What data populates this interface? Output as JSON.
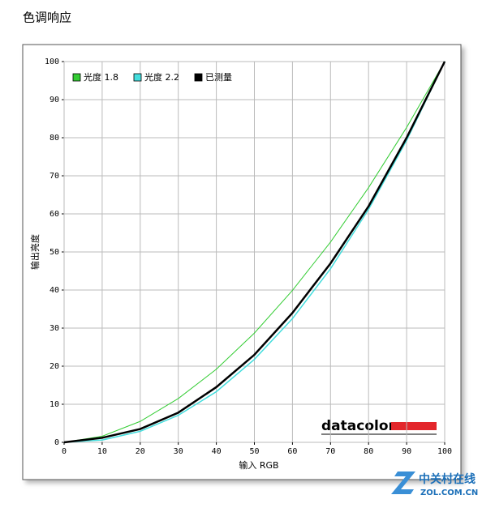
{
  "chart_data": {
    "type": "line",
    "title": "色调响应",
    "x_label": "输入 RGB",
    "y_label": "输出亮度",
    "x": [
      0,
      10,
      20,
      30,
      40,
      50,
      60,
      70,
      80,
      90,
      100
    ],
    "series": [
      {
        "name": "光度 1.8",
        "color": "#33cc33",
        "values": [
          0,
          1.6,
          5.5,
          11.5,
          19.2,
          28.7,
          39.9,
          52.6,
          66.9,
          82.7,
          100
        ]
      },
      {
        "name": "光度 2.2",
        "color": "#44dddd",
        "values": [
          0,
          0.6,
          2.9,
          7.1,
          13.3,
          21.8,
          32.5,
          45.6,
          61.2,
          79.3,
          100
        ]
      },
      {
        "name": "已测量",
        "color": "#000000",
        "values": [
          0,
          1.2,
          3.5,
          7.8,
          14.5,
          23,
          34,
          47,
          62,
          80,
          100
        ]
      }
    ],
    "xlim": [
      0,
      100
    ],
    "ylim": [
      0,
      100
    ],
    "xticks": [
      0,
      10,
      20,
      30,
      40,
      50,
      60,
      70,
      80,
      90,
      100
    ],
    "yticks": [
      0,
      10,
      20,
      30,
      40,
      50,
      60,
      70,
      80,
      90,
      100
    ],
    "grid": true,
    "legend": "top-left",
    "annotations": [
      "datacolor",
      "中关村在线",
      "ZOL.COM.CN"
    ]
  }
}
